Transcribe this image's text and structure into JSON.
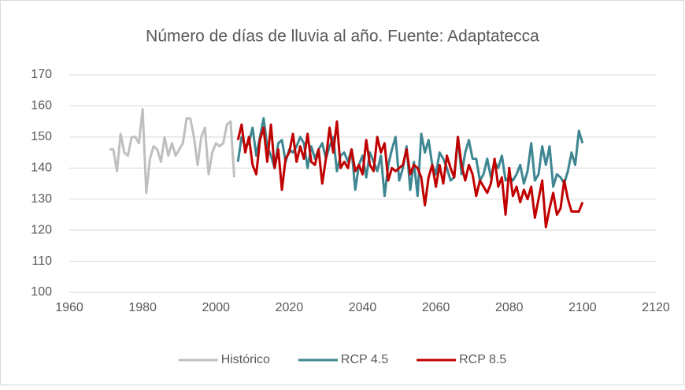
{
  "chart_data": {
    "type": "line",
    "title": "Número de días de lluvia al año. Fuente: Adaptatecca",
    "xlim": [
      1960,
      2120
    ],
    "xticks": [
      1960,
      1980,
      2000,
      2020,
      2040,
      2060,
      2080,
      2100,
      2120
    ],
    "ylim": [
      100,
      170
    ],
    "yticks": [
      100,
      110,
      120,
      130,
      140,
      150,
      160,
      170
    ],
    "grid": true,
    "legend": "bottom",
    "series": [
      {
        "name": "Histórico",
        "color": "#bfbfbf",
        "x": [
          1971,
          1972,
          1973,
          1974,
          1975,
          1976,
          1977,
          1978,
          1979,
          1980,
          1981,
          1982,
          1983,
          1984,
          1985,
          1986,
          1987,
          1988,
          1989,
          1990,
          1991,
          1992,
          1993,
          1994,
          1995,
          1996,
          1997,
          1998,
          1999,
          2000,
          2001,
          2002,
          2003,
          2004,
          2005
        ],
        "values": [
          146,
          146,
          139,
          151,
          145,
          144,
          150,
          150,
          148,
          159,
          132,
          143,
          147,
          146,
          142,
          150,
          144,
          148,
          144,
          146,
          148,
          156,
          156,
          150,
          141,
          150,
          153,
          138,
          145,
          148,
          147,
          148,
          154,
          155,
          137
        ]
      },
      {
        "name": "RCP 4.5",
        "color": "#3e8691",
        "x": [
          2006,
          2007,
          2008,
          2009,
          2010,
          2011,
          2012,
          2013,
          2014,
          2015,
          2016,
          2017,
          2018,
          2019,
          2020,
          2021,
          2022,
          2023,
          2024,
          2025,
          2026,
          2027,
          2028,
          2029,
          2030,
          2031,
          2032,
          2033,
          2034,
          2035,
          2036,
          2037,
          2038,
          2039,
          2040,
          2041,
          2042,
          2043,
          2044,
          2045,
          2046,
          2047,
          2048,
          2049,
          2050,
          2051,
          2052,
          2053,
          2054,
          2055,
          2056,
          2057,
          2058,
          2059,
          2060,
          2061,
          2062,
          2063,
          2064,
          2065,
          2066,
          2067,
          2068,
          2069,
          2070,
          2071,
          2072,
          2073,
          2074,
          2075,
          2076,
          2077,
          2078,
          2079,
          2080,
          2081,
          2082,
          2083,
          2084,
          2085,
          2086,
          2087,
          2088,
          2089,
          2090,
          2091,
          2092,
          2093,
          2094,
          2095,
          2096,
          2097,
          2098,
          2099,
          2100
        ],
        "values": [
          142,
          150,
          147,
          148,
          153,
          144,
          150,
          156,
          147,
          144,
          140,
          148,
          149,
          142,
          146,
          145,
          147,
          150,
          148,
          140,
          147,
          143,
          146,
          148,
          143,
          147,
          150,
          139,
          144,
          145,
          142,
          146,
          133,
          141,
          144,
          137,
          145,
          142,
          139,
          144,
          131,
          141,
          146,
          150,
          136,
          140,
          147,
          133,
          142,
          131,
          151,
          145,
          149,
          141,
          138,
          145,
          143,
          140,
          136,
          137,
          150,
          138,
          145,
          149,
          143,
          143,
          136,
          138,
          143,
          137,
          142,
          140,
          144,
          136,
          137,
          136,
          138,
          141,
          135,
          139,
          148,
          136,
          138,
          147,
          141,
          147,
          134,
          138,
          137,
          135,
          139,
          145,
          141,
          152,
          148
        ]
      },
      {
        "name": "RCP 8.5",
        "color": "#c00000",
        "x": [
          2006,
          2007,
          2008,
          2009,
          2010,
          2011,
          2012,
          2013,
          2014,
          2015,
          2016,
          2017,
          2018,
          2019,
          2020,
          2021,
          2022,
          2023,
          2024,
          2025,
          2026,
          2027,
          2028,
          2029,
          2030,
          2031,
          2032,
          2033,
          2034,
          2035,
          2036,
          2037,
          2038,
          2039,
          2040,
          2041,
          2042,
          2043,
          2044,
          2045,
          2046,
          2047,
          2048,
          2049,
          2050,
          2051,
          2052,
          2053,
          2054,
          2055,
          2056,
          2057,
          2058,
          2059,
          2060,
          2061,
          2062,
          2063,
          2064,
          2065,
          2066,
          2067,
          2068,
          2069,
          2070,
          2071,
          2072,
          2073,
          2074,
          2075,
          2076,
          2077,
          2078,
          2079,
          2080,
          2081,
          2082,
          2083,
          2084,
          2085,
          2086,
          2087,
          2088,
          2089,
          2090,
          2091,
          2092,
          2093,
          2094,
          2095,
          2096,
          2097,
          2098,
          2099,
          2100
        ],
        "values": [
          149,
          154,
          145,
          150,
          141,
          138,
          149,
          153,
          142,
          154,
          140,
          146,
          133,
          143,
          145,
          151,
          142,
          147,
          143,
          151,
          142,
          141,
          146,
          135,
          143,
          153,
          145,
          155,
          140,
          142,
          140,
          146,
          139,
          141,
          138,
          149,
          141,
          139,
          150,
          145,
          148,
          136,
          140,
          139,
          140,
          141,
          146,
          138,
          141,
          140,
          137,
          128,
          137,
          141,
          134,
          141,
          135,
          144,
          140,
          137,
          150,
          141,
          136,
          141,
          138,
          131,
          136,
          134,
          132,
          135,
          143,
          134,
          137,
          125,
          140,
          131,
          134,
          129,
          133,
          130,
          134,
          124,
          130,
          136,
          121,
          127,
          132,
          125,
          127,
          136,
          130,
          126,
          126,
          126,
          129
        ]
      }
    ]
  }
}
